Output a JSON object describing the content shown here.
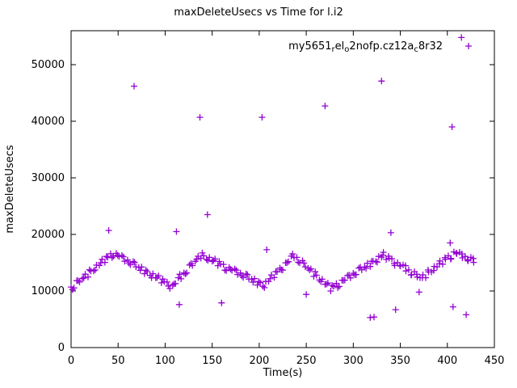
{
  "chart_data": {
    "type": "scatter",
    "title": "maxDeleteUsecs vs Time for l.i2",
    "xlabel": "Time(s)",
    "ylabel": "maxDeleteUsecs",
    "xlim": [
      0,
      450
    ],
    "ylim": [
      0,
      56000
    ],
    "xticks": [
      0,
      50,
      100,
      150,
      200,
      250,
      300,
      350,
      400,
      450
    ],
    "yticks": [
      0,
      10000,
      20000,
      30000,
      40000,
      50000
    ],
    "grid": false,
    "legend_position": "top-right-inside",
    "marker": "plus",
    "color": "#9400d3",
    "background": "#ffffff",
    "series": [
      {
        "name": "my5651_rel_o2nofp.cz12a_c8r32",
        "label_parts": [
          {
            "t": "my5651"
          },
          {
            "t": "r",
            "sub": true
          },
          {
            "t": "el"
          },
          {
            "t": "o",
            "sub": true
          },
          {
            "t": "2nofp.cz12a"
          },
          {
            "t": "c",
            "sub": true
          },
          {
            "t": "8r32"
          }
        ],
        "points": [
          [
            0,
            10700
          ],
          [
            3,
            10560
          ],
          [
            6,
            11830
          ],
          [
            9,
            11590
          ],
          [
            12,
            12200
          ],
          [
            15,
            12970
          ],
          [
            18,
            12480
          ],
          [
            21,
            13540
          ],
          [
            24,
            13560
          ],
          [
            27,
            14570
          ],
          [
            30,
            14530
          ],
          [
            33,
            15600
          ],
          [
            36,
            15060
          ],
          [
            39,
            15970
          ],
          [
            42,
            16590
          ],
          [
            45,
            16150
          ],
          [
            48,
            16660
          ],
          [
            51,
            16080
          ],
          [
            54,
            16290
          ],
          [
            57,
            15260
          ],
          [
            60,
            15470
          ],
          [
            63,
            14640
          ],
          [
            66,
            15200
          ],
          [
            69,
            14270
          ],
          [
            72,
            14180
          ],
          [
            75,
            14250
          ],
          [
            78,
            13060
          ],
          [
            81,
            13420
          ],
          [
            84,
            12740
          ],
          [
            87,
            13050
          ],
          [
            90,
            12320
          ],
          [
            93,
            12680
          ],
          [
            96,
            11450
          ],
          [
            99,
            11660
          ],
          [
            102,
            11580
          ],
          [
            105,
            10440
          ],
          [
            108,
            11050
          ],
          [
            111,
            11300
          ],
          [
            114,
            12350
          ],
          [
            117,
            12150
          ],
          [
            120,
            13200
          ],
          [
            123,
            13200
          ],
          [
            126,
            14600
          ],
          [
            129,
            14500
          ],
          [
            132,
            15250
          ],
          [
            135,
            16150
          ],
          [
            138,
            15800
          ],
          [
            141,
            16210
          ],
          [
            144,
            15580
          ],
          [
            147,
            15940
          ],
          [
            150,
            15250
          ],
          [
            153,
            15660
          ],
          [
            156,
            14480
          ],
          [
            159,
            14740
          ],
          [
            162,
            14700
          ],
          [
            165,
            13620
          ],
          [
            168,
            14180
          ],
          [
            171,
            13640
          ],
          [
            174,
            13900
          ],
          [
            177,
            12920
          ],
          [
            180,
            13180
          ],
          [
            183,
            12390
          ],
          [
            186,
            13010
          ],
          [
            189,
            12120
          ],
          [
            192,
            12080
          ],
          [
            195,
            12190
          ],
          [
            198,
            11060
          ],
          [
            201,
            11470
          ],
          [
            204,
            10830
          ],
          [
            207,
            11680
          ],
          [
            210,
            11710
          ],
          [
            213,
            12850
          ],
          [
            216,
            12390
          ],
          [
            219,
            13380
          ],
          [
            222,
            14060
          ],
          [
            225,
            13700
          ],
          [
            228,
            14990
          ],
          [
            231,
            15180
          ],
          [
            234,
            16160
          ],
          [
            237,
            15900
          ],
          [
            240,
            15950
          ],
          [
            243,
            14960
          ],
          [
            246,
            15360
          ],
          [
            249,
            14270
          ],
          [
            252,
            14020
          ],
          [
            255,
            13920
          ],
          [
            258,
            12580
          ],
          [
            261,
            12780
          ],
          [
            264,
            11940
          ],
          [
            267,
            12090
          ],
          [
            270,
            11190
          ],
          [
            273,
            11400
          ],
          [
            276,
            10000
          ],
          [
            279,
            10820
          ],
          [
            282,
            11330
          ],
          [
            285,
            10800
          ],
          [
            288,
            11910
          ],
          [
            291,
            11930
          ],
          [
            294,
            12750
          ],
          [
            297,
            12310
          ],
          [
            300,
            13130
          ],
          [
            303,
            12900
          ],
          [
            306,
            14060
          ],
          [
            309,
            13730
          ],
          [
            312,
            14240
          ],
          [
            315,
            14910
          ],
          [
            318,
            14330
          ],
          [
            321,
            15290
          ],
          [
            324,
            15210
          ],
          [
            327,
            16120
          ],
          [
            330,
            15990
          ],
          [
            332,
            16850
          ],
          [
            335,
            15590
          ],
          [
            338,
            15790
          ],
          [
            341,
            15680
          ],
          [
            344,
            14520
          ],
          [
            347,
            15010
          ],
          [
            350,
            14410
          ],
          [
            353,
            14600
          ],
          [
            356,
            13540
          ],
          [
            359,
            13730
          ],
          [
            362,
            12880
          ],
          [
            365,
            13420
          ],
          [
            368,
            12460
          ],
          [
            371,
            12350
          ],
          [
            374,
            12860
          ],
          [
            377,
            12340
          ],
          [
            380,
            13370
          ],
          [
            383,
            13360
          ],
          [
            386,
            14340
          ],
          [
            389,
            14270
          ],
          [
            392,
            15310
          ],
          [
            395,
            14740
          ],
          [
            398,
            15620
          ],
          [
            401,
            16210
          ],
          [
            404,
            15740
          ],
          [
            407,
            16920
          ],
          [
            410,
            16590
          ],
          [
            413,
            16850
          ],
          [
            416,
            15860
          ],
          [
            419,
            16120
          ],
          [
            422,
            15330
          ],
          [
            425,
            15940
          ],
          [
            428,
            15050
          ],
          [
            1.5,
            10260
          ],
          [
            7.5,
            11830
          ],
          [
            13.5,
            12310
          ],
          [
            19.5,
            13740
          ],
          [
            25.5,
            13710
          ],
          [
            31.5,
            14990
          ],
          [
            37.5,
            16120
          ],
          [
            43.5,
            15890
          ],
          [
            49.5,
            16320
          ],
          [
            55.5,
            16050
          ],
          [
            61.5,
            14930
          ],
          [
            67.5,
            15060
          ],
          [
            73.5,
            13640
          ],
          [
            79.5,
            13670
          ],
          [
            85.5,
            12340
          ],
          [
            91.5,
            12370
          ],
          [
            97.5,
            12100
          ],
          [
            103.5,
            10880
          ],
          [
            109.5,
            11260
          ],
          [
            115.5,
            12960
          ],
          [
            121.5,
            13010
          ],
          [
            127.5,
            14860
          ],
          [
            133.5,
            15610
          ],
          [
            139.5,
            16730
          ],
          [
            145.5,
            15410
          ],
          [
            151.5,
            15380
          ],
          [
            157.5,
            15210
          ],
          [
            163.5,
            13680
          ],
          [
            169.5,
            13860
          ],
          [
            175.5,
            13680
          ],
          [
            181.5,
            12660
          ],
          [
            187.5,
            12890
          ],
          [
            193.5,
            11560
          ],
          [
            199.5,
            11690
          ],
          [
            205.5,
            10580
          ],
          [
            211.5,
            12160
          ],
          [
            217.5,
            13430
          ],
          [
            223.5,
            13760
          ],
          [
            229.5,
            14980
          ],
          [
            235.5,
            16560
          ],
          [
            241.5,
            15080
          ],
          [
            247.5,
            14940
          ],
          [
            253.5,
            13700
          ],
          [
            259.5,
            13400
          ],
          [
            265.5,
            11660
          ],
          [
            271.5,
            11220
          ],
          [
            277.5,
            11010
          ],
          [
            283.5,
            10590
          ],
          [
            289.5,
            11870
          ],
          [
            295.5,
            12810
          ],
          [
            301.5,
            12890
          ],
          [
            307.5,
            14220
          ],
          [
            313.5,
            14000
          ],
          [
            319.5,
            15240
          ],
          [
            325.5,
            15120
          ],
          [
            331.5,
            16350
          ],
          [
            337.5,
            16140
          ],
          [
            343.5,
            14870
          ],
          [
            349.5,
            14510
          ],
          [
            355.5,
            14490
          ],
          [
            361.5,
            12830
          ],
          [
            367.5,
            12960
          ],
          [
            373.5,
            12340
          ],
          [
            379.5,
            13710
          ],
          [
            385.5,
            13630
          ],
          [
            391.5,
            14840
          ],
          [
            397.5,
            15910
          ],
          [
            403.5,
            15630
          ],
          [
            409.5,
            16730
          ],
          [
            415.5,
            16550
          ],
          [
            421.5,
            15520
          ],
          [
            427.5,
            15740
          ],
          [
            40,
            20700
          ],
          [
            67,
            46200
          ],
          [
            112,
            20500
          ],
          [
            115,
            7600
          ],
          [
            137,
            40700
          ],
          [
            145,
            23500
          ],
          [
            160,
            7900
          ],
          [
            203,
            40700
          ],
          [
            208,
            17300
          ],
          [
            250,
            9400
          ],
          [
            270,
            42700
          ],
          [
            318,
            5300
          ],
          [
            322,
            5400
          ],
          [
            330,
            47100
          ],
          [
            340,
            20300
          ],
          [
            345,
            6700
          ],
          [
            370,
            9800
          ],
          [
            403,
            18500
          ],
          [
            405,
            39000
          ],
          [
            406,
            7200
          ],
          [
            415,
            54800
          ],
          [
            420,
            5800
          ]
        ]
      }
    ]
  }
}
